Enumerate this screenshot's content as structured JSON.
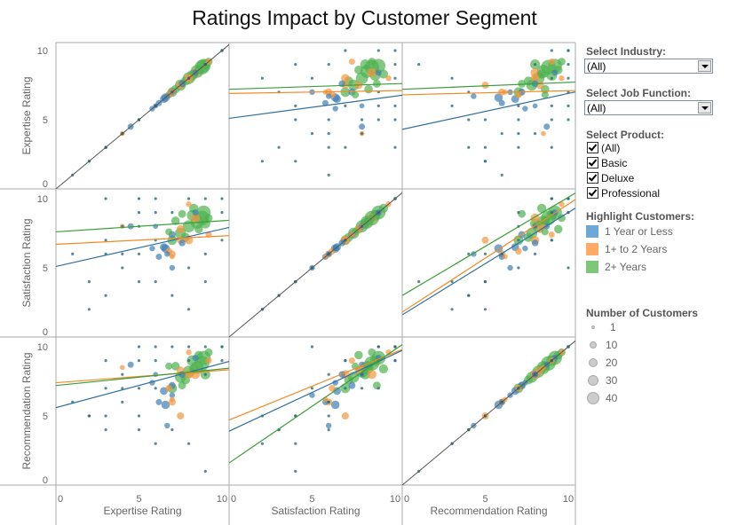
{
  "title": "Ratings Impact by Customer Segment",
  "filters": {
    "industry": {
      "label": "Select Industry:",
      "value": "(All)"
    },
    "job_function": {
      "label": "Select Job Function:",
      "value": "(All)"
    },
    "product": {
      "label": "Select Product:",
      "options": [
        {
          "label": "(All)",
          "checked": true
        },
        {
          "label": "Basic",
          "checked": true
        },
        {
          "label": "Deluxe",
          "checked": true
        },
        {
          "label": "Professional",
          "checked": true
        }
      ]
    }
  },
  "highlight": {
    "label": "Highlight Customers:",
    "items": [
      {
        "label": "1 Year or Less",
        "color": "#6fa8d6"
      },
      {
        "label": "1+ to 2 Years",
        "color": "#ffab66"
      },
      {
        "label": "2+ Years",
        "color": "#7ec77a"
      }
    ]
  },
  "size_legend": {
    "label": "Number of Customers",
    "items": [
      "1",
      "10",
      "20",
      "30",
      "40"
    ]
  },
  "chart_data": {
    "type": "scatter",
    "layout": "scatter-matrix",
    "variables": [
      "Expertise Rating",
      "Satisfaction Rating",
      "Recommendation Rating"
    ],
    "axis_range": [
      0,
      10
    ],
    "ticks": [
      "0",
      "5",
      "10"
    ],
    "grid": false,
    "segments": [
      "1 Year or Less",
      "1+ to 2 Years",
      "2+ Years"
    ],
    "segment_colors": [
      "#3f80b5",
      "#f5953f",
      "#4fb04f"
    ],
    "line_colors": [
      "#2f6fa0",
      "#f28a24",
      "#3a9e3a"
    ],
    "diagonal_color": "#555555",
    "points_fields": [
      "expertise",
      "satisfaction",
      "recommendation",
      "segment_index",
      "customers"
    ],
    "points": [
      [
        8.8,
        8.6,
        8.8,
        2,
        40
      ],
      [
        8.5,
        8.3,
        8.5,
        2,
        30
      ],
      [
        8.0,
        8.0,
        8.2,
        2,
        25
      ],
      [
        7.5,
        7.5,
        7.8,
        2,
        20
      ],
      [
        8.9,
        9.0,
        9.2,
        2,
        35
      ],
      [
        8.2,
        8.8,
        9.0,
        2,
        18
      ],
      [
        7.8,
        7.2,
        7.6,
        2,
        12
      ],
      [
        9.0,
        8.2,
        8.0,
        2,
        15
      ],
      [
        7.2,
        8.4,
        8.6,
        2,
        10
      ],
      [
        8.6,
        7.8,
        9.4,
        2,
        10
      ],
      [
        7.0,
        7.0,
        7.0,
        2,
        14
      ],
      [
        8.3,
        9.3,
        8.4,
        2,
        12
      ],
      [
        7.6,
        8.9,
        7.2,
        2,
        8
      ],
      [
        6.8,
        7.6,
        8.6,
        2,
        6
      ],
      [
        9.2,
        8.6,
        9.6,
        2,
        8
      ],
      [
        8.0,
        7.0,
        8.0,
        1,
        10
      ],
      [
        7.5,
        7.8,
        8.3,
        1,
        8
      ],
      [
        8.4,
        8.6,
        8.0,
        1,
        12
      ],
      [
        6.8,
        6.2,
        7.0,
        1,
        5
      ],
      [
        9.2,
        7.4,
        9.0,
        1,
        4
      ],
      [
        7.0,
        5.8,
        6.2,
        1,
        2
      ],
      [
        3.0,
        6.0,
        5.0,
        1,
        1
      ],
      [
        6.0,
        4.0,
        3.0,
        1,
        1
      ],
      [
        8.0,
        9.6,
        9.6,
        1,
        3
      ],
      [
        5.0,
        8.0,
        7.0,
        1,
        1
      ],
      [
        7.5,
        7.0,
        5.0,
        1,
        6
      ],
      [
        4.0,
        8.0,
        8.5,
        1,
        2
      ],
      [
        7.0,
        6.0,
        6.0,
        1,
        6
      ],
      [
        6.5,
        6.5,
        6.8,
        0,
        8
      ],
      [
        7.0,
        7.4,
        7.2,
        0,
        6
      ],
      [
        6.2,
        5.8,
        6.0,
        0,
        4
      ],
      [
        5.8,
        6.4,
        7.4,
        0,
        3
      ],
      [
        7.6,
        6.8,
        8.0,
        0,
        5
      ],
      [
        8.4,
        9.0,
        9.2,
        0,
        4
      ],
      [
        5.0,
        4.0,
        5.0,
        0,
        1
      ],
      [
        4.0,
        6.0,
        6.0,
        0,
        1
      ],
      [
        6.0,
        8.0,
        8.0,
        0,
        2
      ],
      [
        7.0,
        5.0,
        6.5,
        0,
        3
      ],
      [
        4.5,
        8.0,
        8.7,
        0,
        4
      ],
      [
        6.6,
        6.4,
        5.8,
        0,
        10
      ],
      [
        6.7,
        6.0,
        4.3,
        0,
        3
      ],
      [
        2,
        4,
        5,
        2,
        1
      ],
      [
        3,
        7,
        7,
        2,
        1
      ],
      [
        4,
        8,
        8,
        2,
        1
      ],
      [
        5,
        9,
        9,
        2,
        1
      ],
      [
        6,
        10,
        10,
        2,
        1
      ],
      [
        7,
        3,
        4,
        2,
        1
      ],
      [
        8,
        2,
        3,
        2,
        1
      ],
      [
        9,
        10,
        10,
        2,
        1
      ],
      [
        10,
        9,
        10,
        2,
        1
      ],
      [
        1,
        6,
        6,
        2,
        1
      ],
      [
        5,
        6,
        4,
        2,
        1
      ],
      [
        6,
        9,
        7,
        2,
        1
      ],
      [
        9,
        6,
        8,
        2,
        1
      ],
      [
        8,
        10,
        9,
        2,
        1
      ],
      [
        7,
        9,
        10,
        2,
        1
      ],
      [
        10,
        10,
        10,
        2,
        1
      ],
      [
        4,
        5,
        7,
        2,
        1
      ],
      [
        6,
        7,
        9,
        2,
        1
      ],
      [
        3,
        3,
        4,
        2,
        1
      ],
      [
        8,
        5,
        10,
        2,
        1
      ],
      [
        5,
        10,
        10,
        2,
        1
      ],
      [
        9,
        4,
        1,
        2,
        1
      ],
      [
        2,
        2,
        5,
        2,
        1
      ],
      [
        10,
        7,
        9,
        2,
        1
      ],
      [
        3,
        10,
        9,
        2,
        1
      ]
    ],
    "trend_lines": [
      {
        "row": 0,
        "col": 1,
        "lines": [
          [
            5.1,
            6.7
          ],
          [
            6.9,
            7.1
          ],
          [
            7.2,
            7.6
          ]
        ]
      },
      {
        "row": 0,
        "col": 2,
        "lines": [
          [
            4.3,
            6.9
          ],
          [
            6.8,
            7.1
          ],
          [
            7.2,
            7.7
          ]
        ]
      },
      {
        "row": 1,
        "col": 0,
        "lines": [
          [
            5.1,
            7.8
          ],
          [
            6.7,
            7.3
          ],
          [
            7.6,
            8.4
          ]
        ]
      },
      {
        "row": 1,
        "col": 2,
        "lines": [
          [
            1.6,
            9.0
          ],
          [
            1.8,
            9.6
          ],
          [
            3.0,
            10.1
          ]
        ]
      },
      {
        "row": 2,
        "col": 0,
        "lines": [
          [
            5.6,
            8.8
          ],
          [
            7.4,
            8.3
          ],
          [
            7.2,
            8.4
          ]
        ]
      },
      {
        "row": 2,
        "col": 1,
        "lines": [
          [
            3.9,
            9.5
          ],
          [
            4.7,
            9.6
          ],
          [
            1.6,
            9.8
          ]
        ]
      }
    ],
    "trend_line_format": "value at x=0, value at x=10, per segment"
  }
}
